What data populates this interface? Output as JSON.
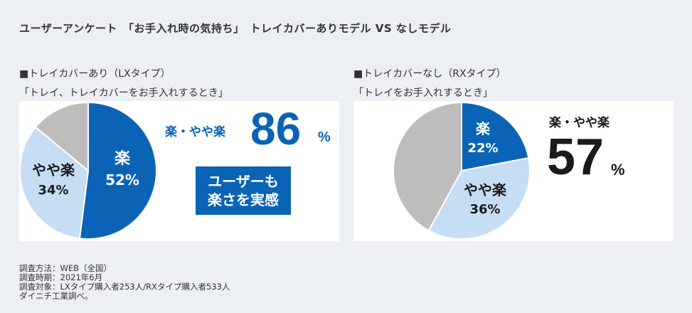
{
  "title": "ユーザーアンケート　「お手入れ時の気持ち」　トレイカバーありモデル VS なしモデル",
  "colors": {
    "raku": "#0b63b6",
    "yaya_raku": "#c5def3",
    "other": "#bdbdbd",
    "background": "#eceff3"
  },
  "left": {
    "heading": "■トレイカバーあり（LXタイプ）",
    "subheading": "「トレイ、トレイカバーをお手入れするとき」",
    "highlight_label": "楽・やや楽",
    "highlight_value": "86",
    "highlight_unit": "%",
    "badge_line1": "ユーザーも",
    "badge_line2": "楽さを実感"
  },
  "right": {
    "heading": "■トレイカバーなし（RXタイプ）",
    "subheading": "「トレイをお手入れするとき」",
    "highlight_label": "楽・やや楽",
    "highlight_value": "57",
    "highlight_unit": "%"
  },
  "chart_data": [
    {
      "type": "pie",
      "slices": [
        {
          "label": "楽",
          "value": 52,
          "value_text": "52%",
          "color": "#0b63b6"
        },
        {
          "label": "やや楽",
          "value": 34,
          "value_text": "34%",
          "color": "#c5def3"
        },
        {
          "label": "",
          "value": 14,
          "value_text": "",
          "color": "#bdbdbd"
        }
      ]
    },
    {
      "type": "pie",
      "slices": [
        {
          "label": "楽",
          "value": 22,
          "value_text": "22%",
          "color": "#0b63b6"
        },
        {
          "label": "やや楽",
          "value": 36,
          "value_text": "36%",
          "color": "#c5def3"
        },
        {
          "label": "",
          "value": 42,
          "value_text": "",
          "color": "#bdbdbd"
        }
      ]
    }
  ],
  "footnotes": [
    "調査方法：WEB（全国）",
    "調査時期：2021年6月",
    "調査対象：LXタイプ購入者253人/RXタイプ購入者533人",
    "ダイニチ工業調べ。"
  ]
}
